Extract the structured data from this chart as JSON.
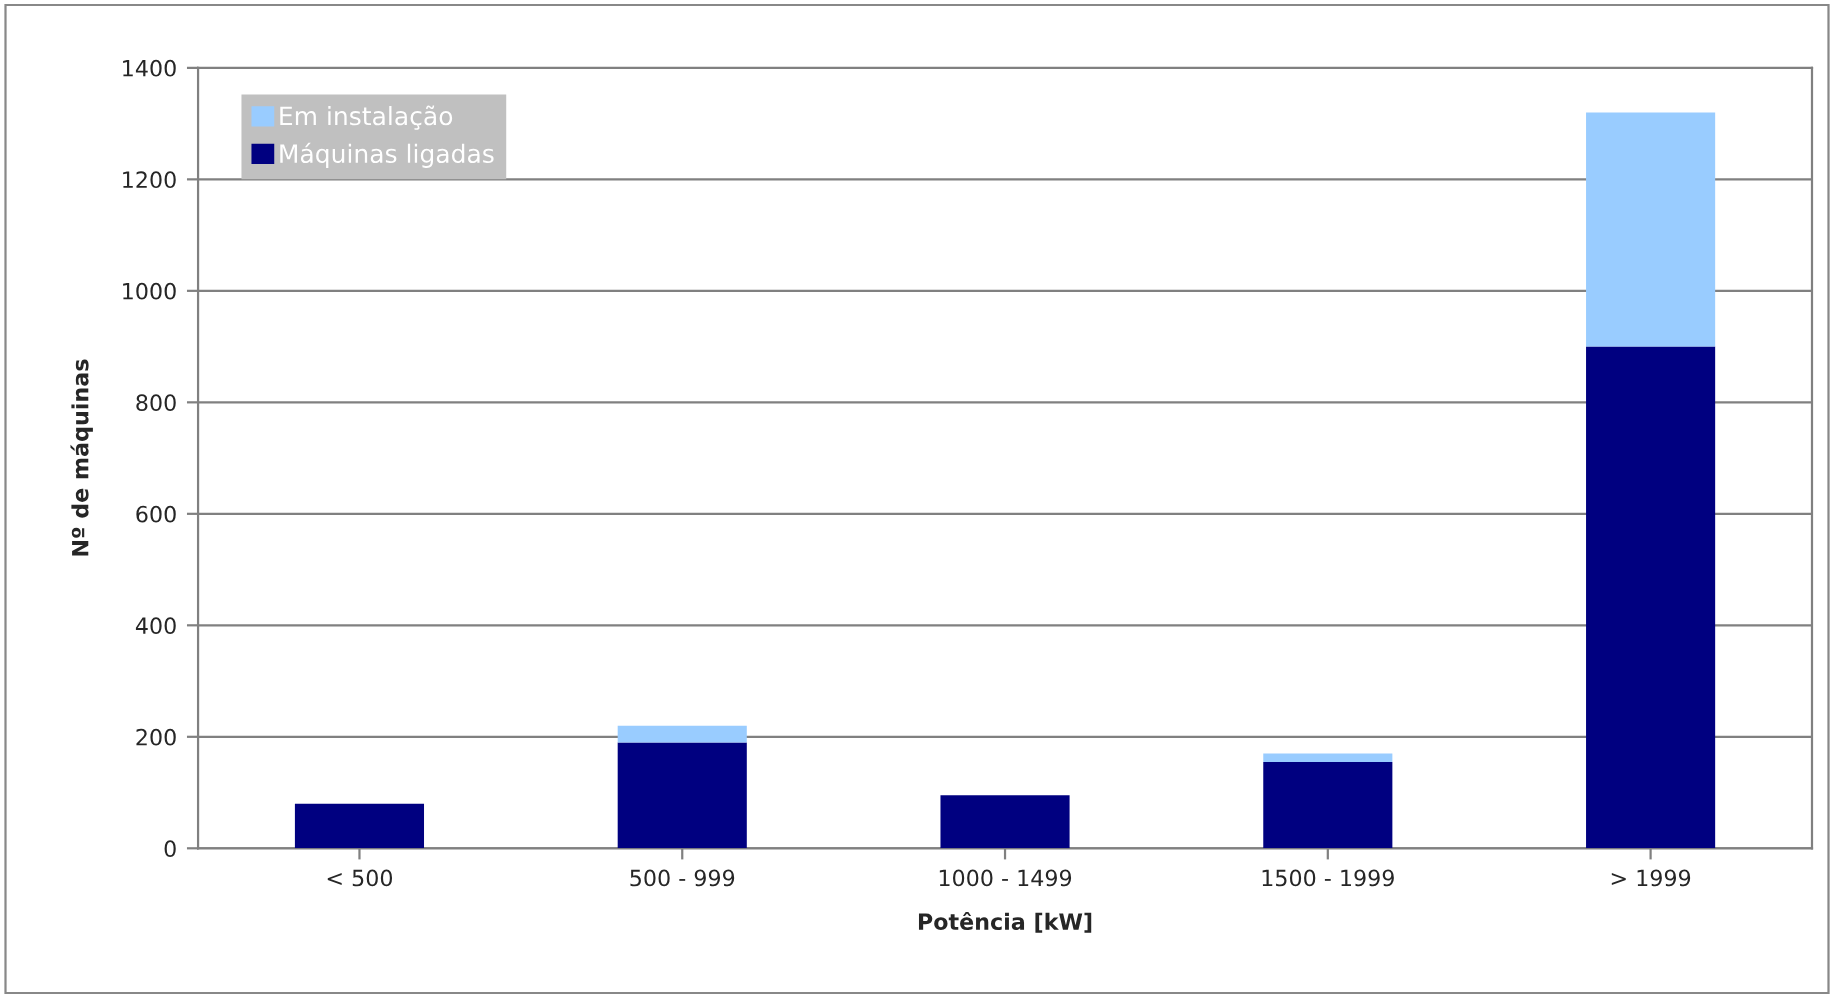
{
  "chart_data": {
    "type": "bar",
    "stacked": true,
    "xlabel": "Potência [kW]",
    "ylabel": "Nº de máquinas",
    "categories": [
      "< 500",
      "500 - 999",
      "1000 - 1499",
      "1500 - 1999",
      "> 1999"
    ],
    "series": [
      {
        "name": "Máquinas ligadas",
        "color": "#000080",
        "values": [
          80,
          190,
          95,
          155,
          900
        ]
      },
      {
        "name": "Em instalação",
        "color": "#99ccff",
        "values": [
          null,
          30,
          null,
          15,
          420
        ]
      }
    ],
    "ylim": [
      0,
      1400
    ],
    "yticks": [
      0,
      200,
      400,
      600,
      800,
      1000,
      1200,
      1400
    ],
    "grid": "y",
    "legend": "top left"
  }
}
